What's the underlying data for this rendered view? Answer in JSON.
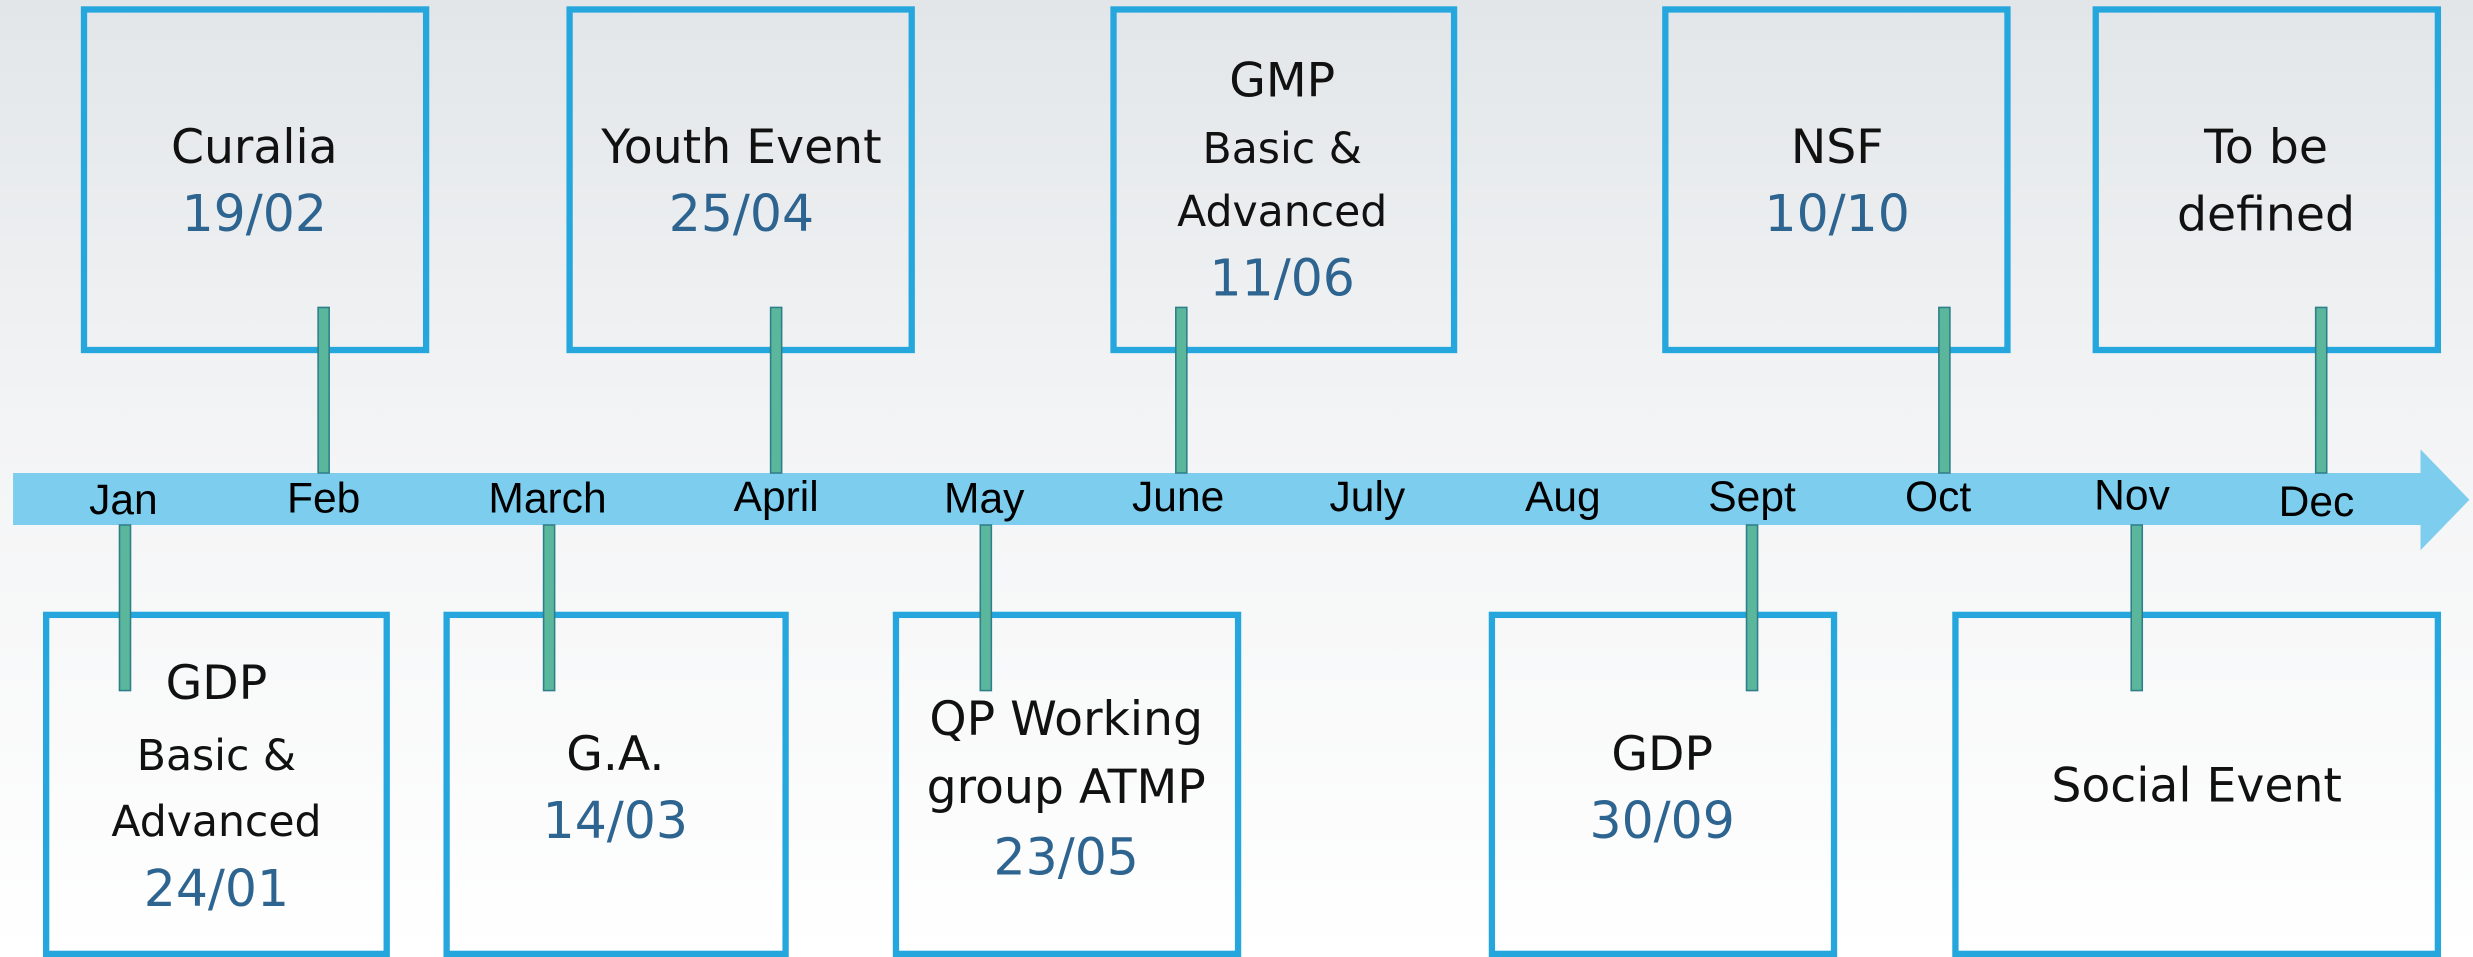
{
  "months": [
    "Jan",
    "Feb",
    "March",
    "April",
    "May",
    "June",
    "July",
    "Aug",
    "Sept",
    "Oct",
    "Nov",
    "Dec"
  ],
  "events_above": [
    {
      "lines": [
        "Curalia"
      ],
      "date": "19/02"
    },
    {
      "lines": [
        "Youth Event"
      ],
      "date": "25/04"
    },
    {
      "lines": [
        "GMP",
        "Basic &",
        "Advanced"
      ],
      "date": "11/06"
    },
    {
      "lines": [
        "NSF"
      ],
      "date": "10/10"
    },
    {
      "lines": [
        "To be",
        "defined"
      ]
    }
  ],
  "events_below": [
    {
      "lines": [
        "GDP",
        "Basic &",
        "Advanced"
      ],
      "date": "24/01"
    },
    {
      "lines": [
        "G.A."
      ],
      "date": "14/03"
    },
    {
      "lines": [
        "QP Working",
        "group ATMP"
      ],
      "date": "23/05"
    },
    {
      "lines": [
        "GDP"
      ],
      "date": "30/09"
    },
    {
      "lines": [
        "Social Event"
      ]
    }
  ]
}
